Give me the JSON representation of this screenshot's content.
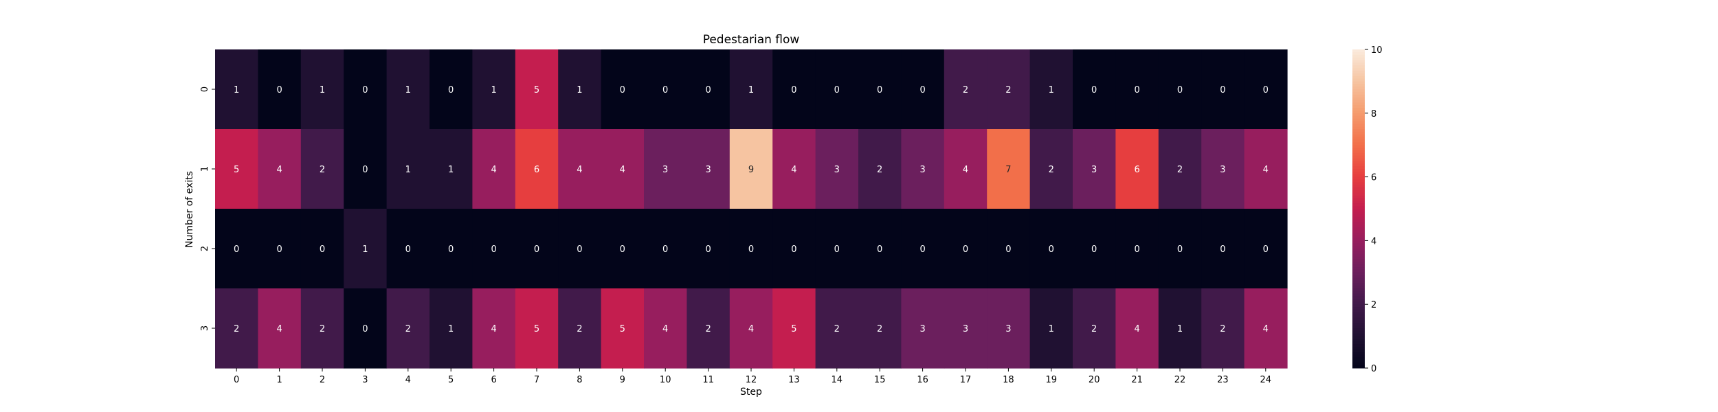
{
  "chart_data": {
    "type": "heatmap",
    "title": "Pedestarian flow",
    "xlabel": "Step",
    "ylabel": "Number of exits",
    "x_categories": [
      "0",
      "1",
      "2",
      "3",
      "4",
      "5",
      "6",
      "7",
      "8",
      "9",
      "10",
      "11",
      "12",
      "13",
      "14",
      "15",
      "16",
      "17",
      "18",
      "19",
      "20",
      "21",
      "22",
      "23",
      "24"
    ],
    "y_categories": [
      "0",
      "1",
      "2",
      "3"
    ],
    "values": [
      [
        1,
        0,
        1,
        0,
        1,
        0,
        1,
        5,
        1,
        0,
        0,
        0,
        1,
        0,
        0,
        0,
        0,
        2,
        2,
        1,
        0,
        0,
        0,
        0,
        0
      ],
      [
        5,
        4,
        2,
        0,
        1,
        1,
        4,
        6,
        4,
        4,
        3,
        3,
        9,
        4,
        3,
        2,
        3,
        4,
        7,
        2,
        3,
        6,
        2,
        3,
        4
      ],
      [
        0,
        0,
        0,
        1,
        0,
        0,
        0,
        0,
        0,
        0,
        0,
        0,
        0,
        0,
        0,
        0,
        0,
        0,
        0,
        0,
        0,
        0,
        0,
        0,
        0
      ],
      [
        2,
        4,
        2,
        0,
        2,
        1,
        4,
        5,
        2,
        5,
        4,
        2,
        4,
        5,
        2,
        2,
        3,
        3,
        3,
        1,
        2,
        4,
        1,
        2,
        4
      ]
    ],
    "colorbar": {
      "min": 0,
      "max": 10,
      "ticks": [
        "0",
        "2",
        "4",
        "6",
        "8",
        "10"
      ],
      "colormap": "rocket"
    },
    "annotations": true
  }
}
